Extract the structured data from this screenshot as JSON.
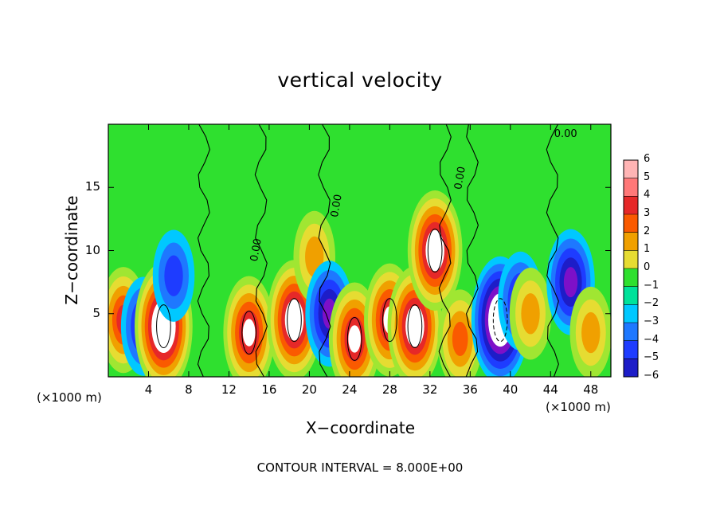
{
  "chart_data": {
    "type": "heatmap",
    "title": "vertical velocity",
    "xlabel": "X−coordinate",
    "ylabel": "Z−coordinate",
    "x_unit": "(×1000 m)",
    "xlim": [
      0,
      50
    ],
    "ylim": [
      0,
      20
    ],
    "x_ticks": [
      "4",
      "8",
      "12",
      "16",
      "20",
      "24",
      "28",
      "32",
      "36",
      "40",
      "44",
      "48"
    ],
    "y_ticks": [
      "5",
      "10",
      "15"
    ],
    "colorbar": {
      "range": [
        -6,
        6
      ],
      "labels": [
        "6",
        "5",
        "4",
        "3",
        "2",
        "1",
        "0",
        "−1",
        "−2",
        "−3",
        "−4",
        "−5",
        "−6"
      ]
    },
    "contour_label": "0.00",
    "footer": "CONTOUR INTERVAL = 8.000E+00",
    "features": [
      {
        "x": 1.5,
        "z": 4.5,
        "w": 5
      },
      {
        "x": 3.5,
        "z": 4.0,
        "w": -4
      },
      {
        "x": 5.5,
        "z": 4.0,
        "w": 8
      },
      {
        "x": 6.5,
        "z": 8.0,
        "w": -3
      },
      {
        "x": 14.0,
        "z": 3.5,
        "w": 6
      },
      {
        "x": 18.5,
        "z": 4.5,
        "w": 7
      },
      {
        "x": 20.5,
        "z": 9.5,
        "w": 3
      },
      {
        "x": 22.0,
        "z": 5.0,
        "w": -5
      },
      {
        "x": 24.5,
        "z": 3.0,
        "w": 6
      },
      {
        "x": 28.0,
        "z": 4.5,
        "w": 6
      },
      {
        "x": 30.5,
        "z": 4.0,
        "w": 7
      },
      {
        "x": 32.5,
        "z": 10.0,
        "w": 7
      },
      {
        "x": 35.0,
        "z": 3.0,
        "w": 4
      },
      {
        "x": 39.0,
        "z": 4.5,
        "w": -8
      },
      {
        "x": 41.0,
        "z": 6.0,
        "w": -4
      },
      {
        "x": 42.0,
        "z": 5.0,
        "w": 3
      },
      {
        "x": 46.0,
        "z": 7.5,
        "w": -5
      },
      {
        "x": 48.0,
        "z": 3.5,
        "w": 3
      }
    ]
  }
}
